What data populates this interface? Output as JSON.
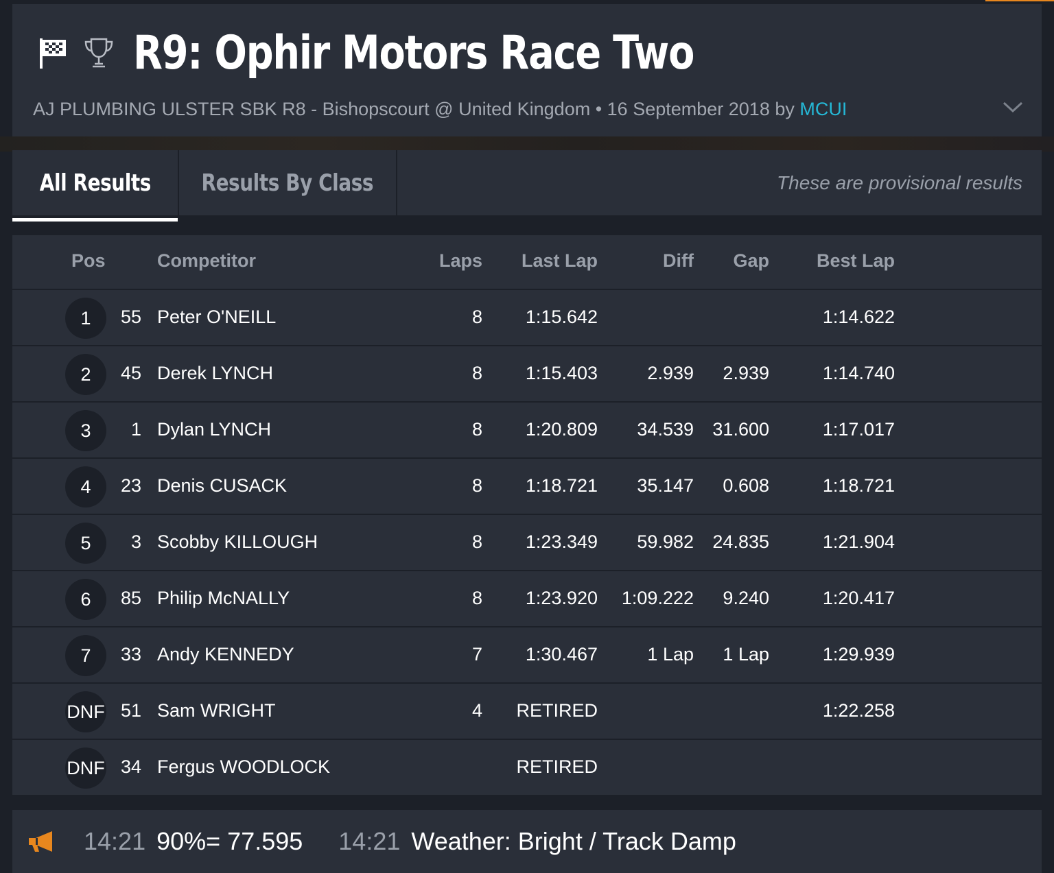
{
  "header": {
    "title": "R9: Ophir Motors Race Two",
    "subtitle_prefix": "AJ PLUMBING ULSTER SBK R8 - Bishopscourt @ United Kingdom • 16 September 2018 by ",
    "author": "MCUI",
    "icons": [
      "checkered-flag-icon",
      "trophy-icon",
      "chevron-down-icon"
    ]
  },
  "tabs": {
    "all_results": "All Results",
    "by_class": "Results By Class",
    "provisional_note": "These are provisional results"
  },
  "table": {
    "headers": {
      "pos": "Pos",
      "competitor": "Competitor",
      "laps": "Laps",
      "last_lap": "Last Lap",
      "diff": "Diff",
      "gap": "Gap",
      "best_lap": "Best Lap"
    },
    "rows": [
      {
        "pos": "1",
        "num": "55",
        "name": "Peter O'NEILL",
        "laps": "8",
        "last": "1:15.642",
        "diff": "",
        "gap": "",
        "best": "1:14.622"
      },
      {
        "pos": "2",
        "num": "45",
        "name": "Derek LYNCH",
        "laps": "8",
        "last": "1:15.403",
        "diff": "2.939",
        "gap": "2.939",
        "best": "1:14.740"
      },
      {
        "pos": "3",
        "num": "1",
        "name": "Dylan LYNCH",
        "laps": "8",
        "last": "1:20.809",
        "diff": "34.539",
        "gap": "31.600",
        "best": "1:17.017"
      },
      {
        "pos": "4",
        "num": "23",
        "name": "Denis CUSACK",
        "laps": "8",
        "last": "1:18.721",
        "diff": "35.147",
        "gap": "0.608",
        "best": "1:18.721"
      },
      {
        "pos": "5",
        "num": "3",
        "name": "Scobby KILLOUGH",
        "laps": "8",
        "last": "1:23.349",
        "diff": "59.982",
        "gap": "24.835",
        "best": "1:21.904"
      },
      {
        "pos": "6",
        "num": "85",
        "name": "Philip McNALLY",
        "laps": "8",
        "last": "1:23.920",
        "diff": "1:09.222",
        "gap": "9.240",
        "best": "1:20.417"
      },
      {
        "pos": "7",
        "num": "33",
        "name": "Andy KENNEDY",
        "laps": "7",
        "last": "1:30.467",
        "diff": "1 Lap",
        "gap": "1 Lap",
        "best": "1:29.939"
      },
      {
        "pos": "DNF",
        "num": "51",
        "name": "Sam WRIGHT",
        "laps": "4",
        "last": "RETIRED",
        "diff": "",
        "gap": "",
        "best": "1:22.258"
      },
      {
        "pos": "DNF",
        "num": "34",
        "name": "Fergus WOODLOCK",
        "laps": "",
        "last": "RETIRED",
        "diff": "",
        "gap": "",
        "best": ""
      }
    ]
  },
  "announcements": {
    "icon": "megaphone-icon",
    "accent_color": "#e8871e",
    "items": [
      {
        "time": "14:21",
        "text": "90%= 77.595"
      },
      {
        "time": "14:21",
        "text": "Weather: Bright / Track Damp"
      }
    ]
  }
}
